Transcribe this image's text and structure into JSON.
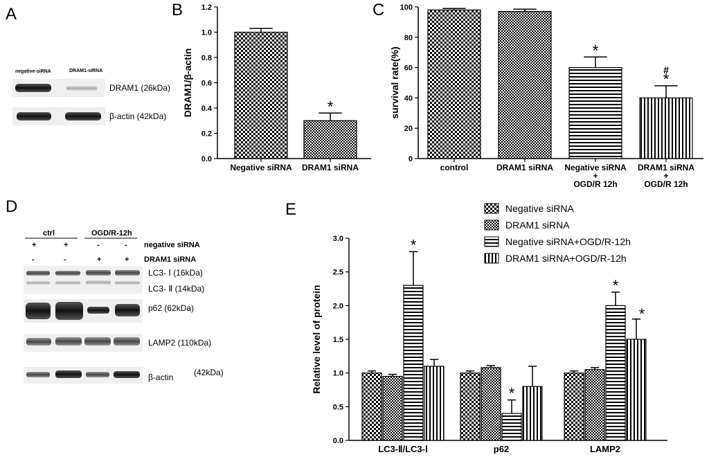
{
  "panels": {
    "A": "A",
    "B": "B",
    "C": "C",
    "D": "D",
    "E": "E"
  },
  "blotA": {
    "lane_labels": [
      "negative-siRNA",
      "DRAM1-siRNA"
    ],
    "bands": [
      "DRAM1 (26kDa)",
      "β-actin (42kDa)"
    ]
  },
  "blotD": {
    "groups": [
      "ctrl",
      "OGD/R-12h"
    ],
    "rows": [
      {
        "label": "negative siRNA",
        "signs": [
          "+",
          "+",
          "-",
          "-"
        ]
      },
      {
        "label": "DRAM1 siRNA",
        "signs": [
          "-",
          "-",
          "+",
          "+"
        ]
      }
    ],
    "bands": [
      "LC3- Ⅰ (16kDa)",
      "LC3- Ⅱ (14kDa)",
      "p62 (62kDa)",
      "LAMP2 (110kDa)",
      "β-actin",
      "(42kDa)"
    ]
  },
  "chart_data": [
    {
      "id": "B",
      "type": "bar",
      "categories": [
        "Negative siRNA",
        "DRAM1 siRNA"
      ],
      "values": [
        1.0,
        0.3
      ],
      "errors": [
        0.03,
        0.06
      ],
      "significance": [
        "",
        "*"
      ],
      "ylabel": "DRAM1/β-actin",
      "ylim": [
        0,
        1.2
      ],
      "yticks": [
        "0.0",
        "0.2",
        "0.4",
        "0.6",
        "0.8",
        "1.0",
        "1.2"
      ]
    },
    {
      "id": "C",
      "type": "bar",
      "categories": [
        [
          "control"
        ],
        [
          "DRAM1 siRNA"
        ],
        [
          "Negative siRNA",
          "+",
          "OGD/R 12h"
        ],
        [
          "DRAM1 siRNA",
          "+",
          "OGD/R 12h"
        ]
      ],
      "values": [
        98,
        97,
        60,
        40
      ],
      "errors": [
        1,
        1.5,
        7,
        8
      ],
      "significance": [
        "",
        "",
        "*",
        "*"
      ],
      "significance2": [
        "",
        "",
        "",
        "#"
      ],
      "ylabel": "survival rate(%)",
      "ylim": [
        0,
        100
      ],
      "yticks": [
        "0",
        "20",
        "40",
        "60",
        "80",
        "100"
      ]
    },
    {
      "id": "E",
      "type": "bar",
      "categories": [
        "LC3-Ⅱ/LC3-Ⅰ",
        "p62",
        "LAMP2"
      ],
      "series": [
        {
          "name": "Negative siRNA",
          "values": [
            1.0,
            1.0,
            1.0
          ],
          "errors": [
            0.03,
            0.03,
            0.03
          ],
          "significance": [
            "",
            "",
            ""
          ]
        },
        {
          "name": "DRAM1 siRNA",
          "values": [
            0.95,
            1.08,
            1.05
          ],
          "errors": [
            0.03,
            0.03,
            0.03
          ],
          "significance": [
            "",
            "",
            ""
          ]
        },
        {
          "name": "Negative siRNA+OGD/R-12h",
          "values": [
            2.3,
            0.4,
            2.0
          ],
          "errors": [
            0.5,
            0.2,
            0.2
          ],
          "significance": [
            "*",
            "*",
            "*"
          ]
        },
        {
          "name": "DRAM1 siRNA+OGD/R-12h",
          "values": [
            1.1,
            0.8,
            1.5
          ],
          "errors": [
            0.1,
            0.3,
            0.3
          ],
          "significance": [
            "",
            "",
            "*"
          ]
        }
      ],
      "ylabel": "Relative level of protein",
      "ylim": [
        0,
        3.0
      ],
      "yticks": [
        "0.0",
        "0.5",
        "1.0",
        "1.5",
        "2.0",
        "2.5",
        "3.0"
      ]
    }
  ]
}
